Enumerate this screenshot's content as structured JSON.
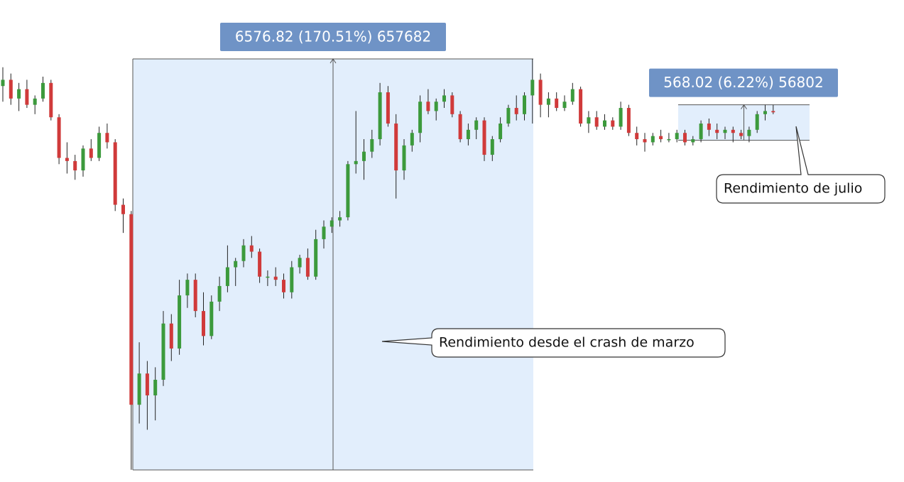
{
  "chart_data": {
    "type": "candlestick",
    "ylim": [
      3664,
      11377
    ],
    "up_color": "#3c9a3c",
    "down_color": "#d03a3a",
    "measure_color": "#e2eefc",
    "tag_color": "#6f93c6",
    "ohlc": [
      [
        10000,
        10300,
        9750,
        10100
      ],
      [
        10100,
        10200,
        9700,
        9800
      ],
      [
        9800,
        10050,
        9600,
        9950
      ],
      [
        9950,
        10100,
        9650,
        9700
      ],
      [
        9700,
        9850,
        9550,
        9800
      ],
      [
        9800,
        10150,
        9750,
        10050
      ],
      [
        10050,
        10100,
        9450,
        9500
      ],
      [
        9500,
        9550,
        8750,
        8850
      ],
      [
        8850,
        9100,
        8600,
        8800
      ],
      [
        8800,
        8900,
        8500,
        8650
      ],
      [
        8650,
        9050,
        8550,
        9000
      ],
      [
        9000,
        9150,
        8800,
        8850
      ],
      [
        8850,
        9350,
        8800,
        9250
      ],
      [
        9250,
        9400,
        9000,
        9100
      ],
      [
        9100,
        9150,
        8000,
        8100
      ],
      [
        8100,
        8200,
        7650,
        7950
      ],
      [
        7950,
        8000,
        3860,
        4900
      ],
      [
        4900,
        5900,
        4600,
        5400
      ],
      [
        5400,
        5600,
        4500,
        5050
      ],
      [
        5050,
        5500,
        4650,
        5300
      ],
      [
        5300,
        6400,
        5200,
        6200
      ],
      [
        6200,
        6350,
        5600,
        5800
      ],
      [
        5800,
        6900,
        5700,
        6650
      ],
      [
        6650,
        7000,
        6450,
        6900
      ],
      [
        6900,
        7000,
        6300,
        6400
      ],
      [
        6400,
        6700,
        5850,
        6000
      ],
      [
        6000,
        6650,
        5950,
        6550
      ],
      [
        6550,
        6950,
        6400,
        6800
      ],
      [
        6800,
        7450,
        6700,
        7100
      ],
      [
        7100,
        7250,
        6800,
        7200
      ],
      [
        7200,
        7550,
        7100,
        7450
      ],
      [
        7450,
        7600,
        7250,
        7350
      ],
      [
        7350,
        7400,
        6850,
        6950
      ],
      [
        6950,
        7050,
        6800,
        6950
      ],
      [
        6950,
        7100,
        6800,
        6900
      ],
      [
        6900,
        7000,
        6600,
        6700
      ],
      [
        6700,
        7200,
        6600,
        7100
      ],
      [
        7100,
        7300,
        7000,
        7250
      ],
      [
        7250,
        7400,
        6900,
        6950
      ],
      [
        6950,
        7700,
        6900,
        7550
      ],
      [
        7550,
        7850,
        7400,
        7750
      ],
      [
        7750,
        7900,
        7650,
        7850
      ],
      [
        7850,
        8000,
        7750,
        7900
      ],
      [
        7900,
        8800,
        7850,
        8750
      ],
      [
        8750,
        9600,
        8600,
        8800
      ],
      [
        8800,
        9150,
        8500,
        8950
      ],
      [
        8950,
        9300,
        8850,
        9150
      ],
      [
        9150,
        10050,
        9050,
        9900
      ],
      [
        9900,
        10000,
        9350,
        9400
      ],
      [
        9400,
        9550,
        8200,
        8650
      ],
      [
        8650,
        9150,
        8500,
        9050
      ],
      [
        9050,
        9300,
        8950,
        9250
      ],
      [
        9250,
        9850,
        9100,
        9750
      ],
      [
        9750,
        9950,
        9550,
        9600
      ],
      [
        9600,
        9800,
        9450,
        9750
      ],
      [
        9750,
        9950,
        9650,
        9850
      ],
      [
        9850,
        9900,
        9500,
        9550
      ],
      [
        9550,
        9600,
        9100,
        9150
      ],
      [
        9150,
        9400,
        9050,
        9300
      ],
      [
        9300,
        9500,
        9150,
        9450
      ],
      [
        9450,
        9500,
        8800,
        8900
      ],
      [
        8900,
        9200,
        8800,
        9150
      ],
      [
        9150,
        9500,
        9100,
        9400
      ],
      [
        9400,
        9700,
        9350,
        9650
      ],
      [
        9650,
        9850,
        9450,
        9550
      ],
      [
        9550,
        9900,
        9450,
        9850
      ],
      [
        9850,
        10434,
        9400,
        10100
      ],
      [
        10100,
        10200,
        9500,
        9700
      ],
      [
        9700,
        9900,
        9500,
        9800
      ],
      [
        9800,
        9900,
        9600,
        9650
      ],
      [
        9650,
        9850,
        9600,
        9750
      ],
      [
        9750,
        10050,
        9700,
        9950
      ],
      [
        9950,
        9990,
        9350,
        9400
      ],
      [
        9400,
        9600,
        9250,
        9500
      ],
      [
        9500,
        9600,
        9300,
        9350
      ],
      [
        9350,
        9550,
        9300,
        9450
      ],
      [
        9450,
        9500,
        9300,
        9350
      ],
      [
        9350,
        9750,
        9300,
        9650
      ],
      [
        9650,
        9700,
        9200,
        9250
      ],
      [
        9250,
        9350,
        9050,
        9150
      ],
      [
        9150,
        9250,
        8950,
        9100
      ],
      [
        9100,
        9250,
        9050,
        9200
      ],
      [
        9200,
        9300,
        9100,
        9150
      ],
      [
        9150,
        9250,
        9100,
        9150
      ],
      [
        9150,
        9300,
        9100,
        9250
      ],
      [
        9250,
        9300,
        9050,
        9100
      ],
      [
        9100,
        9200,
        9050,
        9150
      ],
      [
        9150,
        9450,
        9100,
        9400
      ],
      [
        9400,
        9480,
        9200,
        9300
      ],
      [
        9300,
        9400,
        9150,
        9250
      ],
      [
        9250,
        9350,
        9150,
        9300
      ],
      [
        9300,
        9350,
        9100,
        9250
      ],
      [
        9250,
        9300,
        9150,
        9200
      ],
      [
        9200,
        9350,
        9100,
        9300
      ],
      [
        9300,
        9600,
        9250,
        9550
      ],
      [
        9550,
        9700,
        9450,
        9600
      ],
      [
        9600,
        9700,
        9550,
        9580
      ]
    ],
    "measures": [
      {
        "label": "6576.82 (170.51%) 657682",
        "low": 3857.08,
        "high": 10433.9
      },
      {
        "label": "568.02 (6.22%) 56802",
        "low": 9132.2,
        "high": 9700.22
      }
    ],
    "annotations": [
      "Rendimiento desde el crash de marzo",
      "Rendimiento de julio"
    ]
  }
}
